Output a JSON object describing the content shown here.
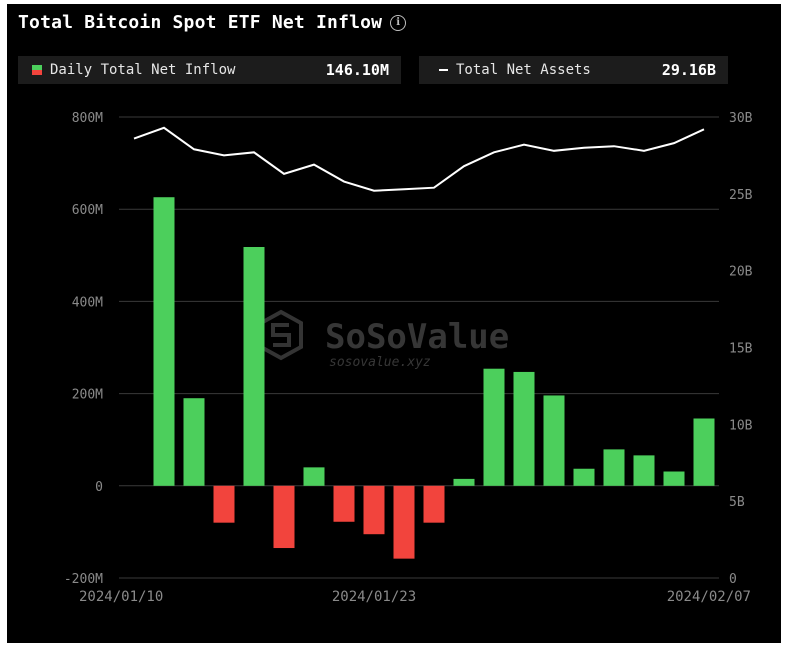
{
  "title": "Total Bitcoin Spot ETF Net Inflow",
  "legend": {
    "inflow_label": "Daily Total Net Inflow",
    "inflow_value": "146.10M",
    "assets_label": "Total Net Assets",
    "assets_value": "29.16B"
  },
  "watermark": {
    "brand": "SoSoValue",
    "url": "sosovalue.xyz"
  },
  "colors": {
    "positive": "#4ccf5c",
    "negative": "#f2443d",
    "line": "#ffffff",
    "background": "#000000"
  },
  "chart_data": {
    "type": "bar",
    "title": "Total Bitcoin Spot ETF Net Inflow",
    "x_tick_labels": [
      "2024/01/10",
      "2024/01/23",
      "2024/02/07"
    ],
    "x_tick_indices": [
      0,
      8,
      19
    ],
    "left_axis": {
      "ticks": [
        "-200M",
        "0",
        "200M",
        "400M",
        "600M",
        "800M"
      ],
      "range_millions": [
        -200,
        800
      ]
    },
    "right_axis": {
      "ticks": [
        "0",
        "5B",
        "10B",
        "15B",
        "20B",
        "25B",
        "30B"
      ],
      "range_billions": [
        0,
        30
      ]
    },
    "grid": true,
    "series": [
      {
        "name": "Daily Total Net Inflow",
        "type": "bar",
        "unit": "M",
        "values": [
          0,
          626,
          190,
          -80,
          518,
          -135,
          40,
          -78,
          -105,
          -158,
          -80,
          15,
          254,
          247,
          196,
          37,
          79,
          66,
          31,
          146
        ]
      },
      {
        "name": "Total Net Assets",
        "type": "line",
        "unit": "B",
        "values": [
          28.6,
          29.3,
          27.9,
          27.5,
          27.7,
          26.3,
          26.9,
          25.8,
          25.2,
          25.3,
          25.4,
          26.8,
          27.7,
          28.2,
          27.8,
          28.0,
          28.1,
          27.8,
          28.3,
          29.2
        ]
      }
    ]
  }
}
